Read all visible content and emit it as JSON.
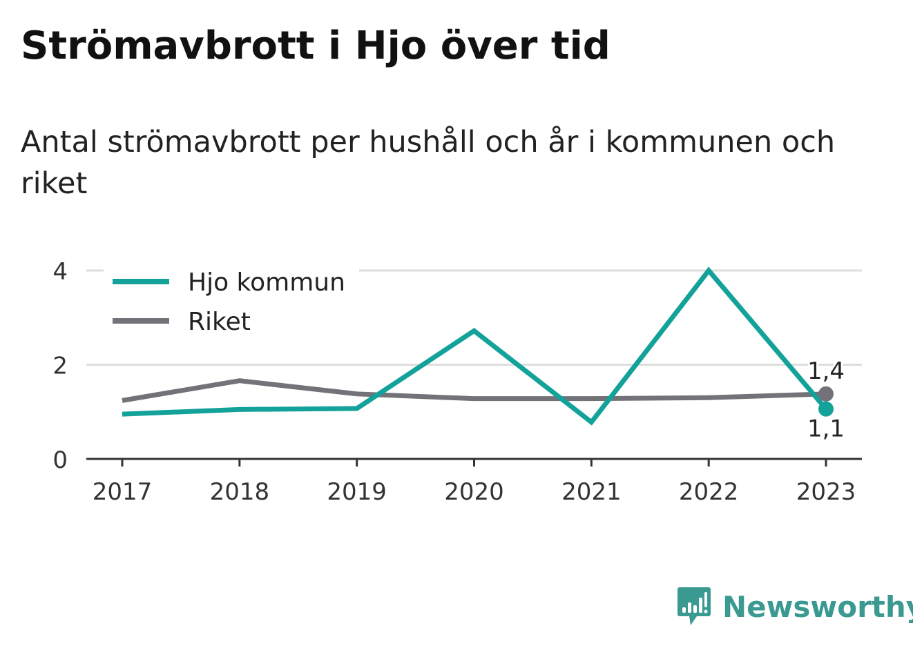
{
  "title": "Strömavbrott i Hjo över tid",
  "subtitle": "Antal strömavbrott per hushåll och år i kommunen och riket",
  "brand": {
    "name": "Newsworthy",
    "color": "#3a9a92"
  },
  "chart_data": {
    "type": "line",
    "categories": [
      "2017",
      "2018",
      "2019",
      "2020",
      "2021",
      "2022",
      "2023"
    ],
    "yticks": [
      "0",
      "2",
      "4"
    ],
    "ylim": [
      0,
      4
    ],
    "grid": true,
    "legend_position": "top-left",
    "series": [
      {
        "name": "Hjo kommun",
        "color": "#13a29a",
        "values": [
          0.95,
          1.05,
          1.07,
          2.72,
          0.78,
          4.0,
          1.06
        ],
        "end_label": "1,1"
      },
      {
        "name": "Riket",
        "color": "#737279",
        "values": [
          1.24,
          1.66,
          1.38,
          1.28,
          1.28,
          1.3,
          1.38
        ],
        "end_label": "1,4"
      }
    ]
  }
}
